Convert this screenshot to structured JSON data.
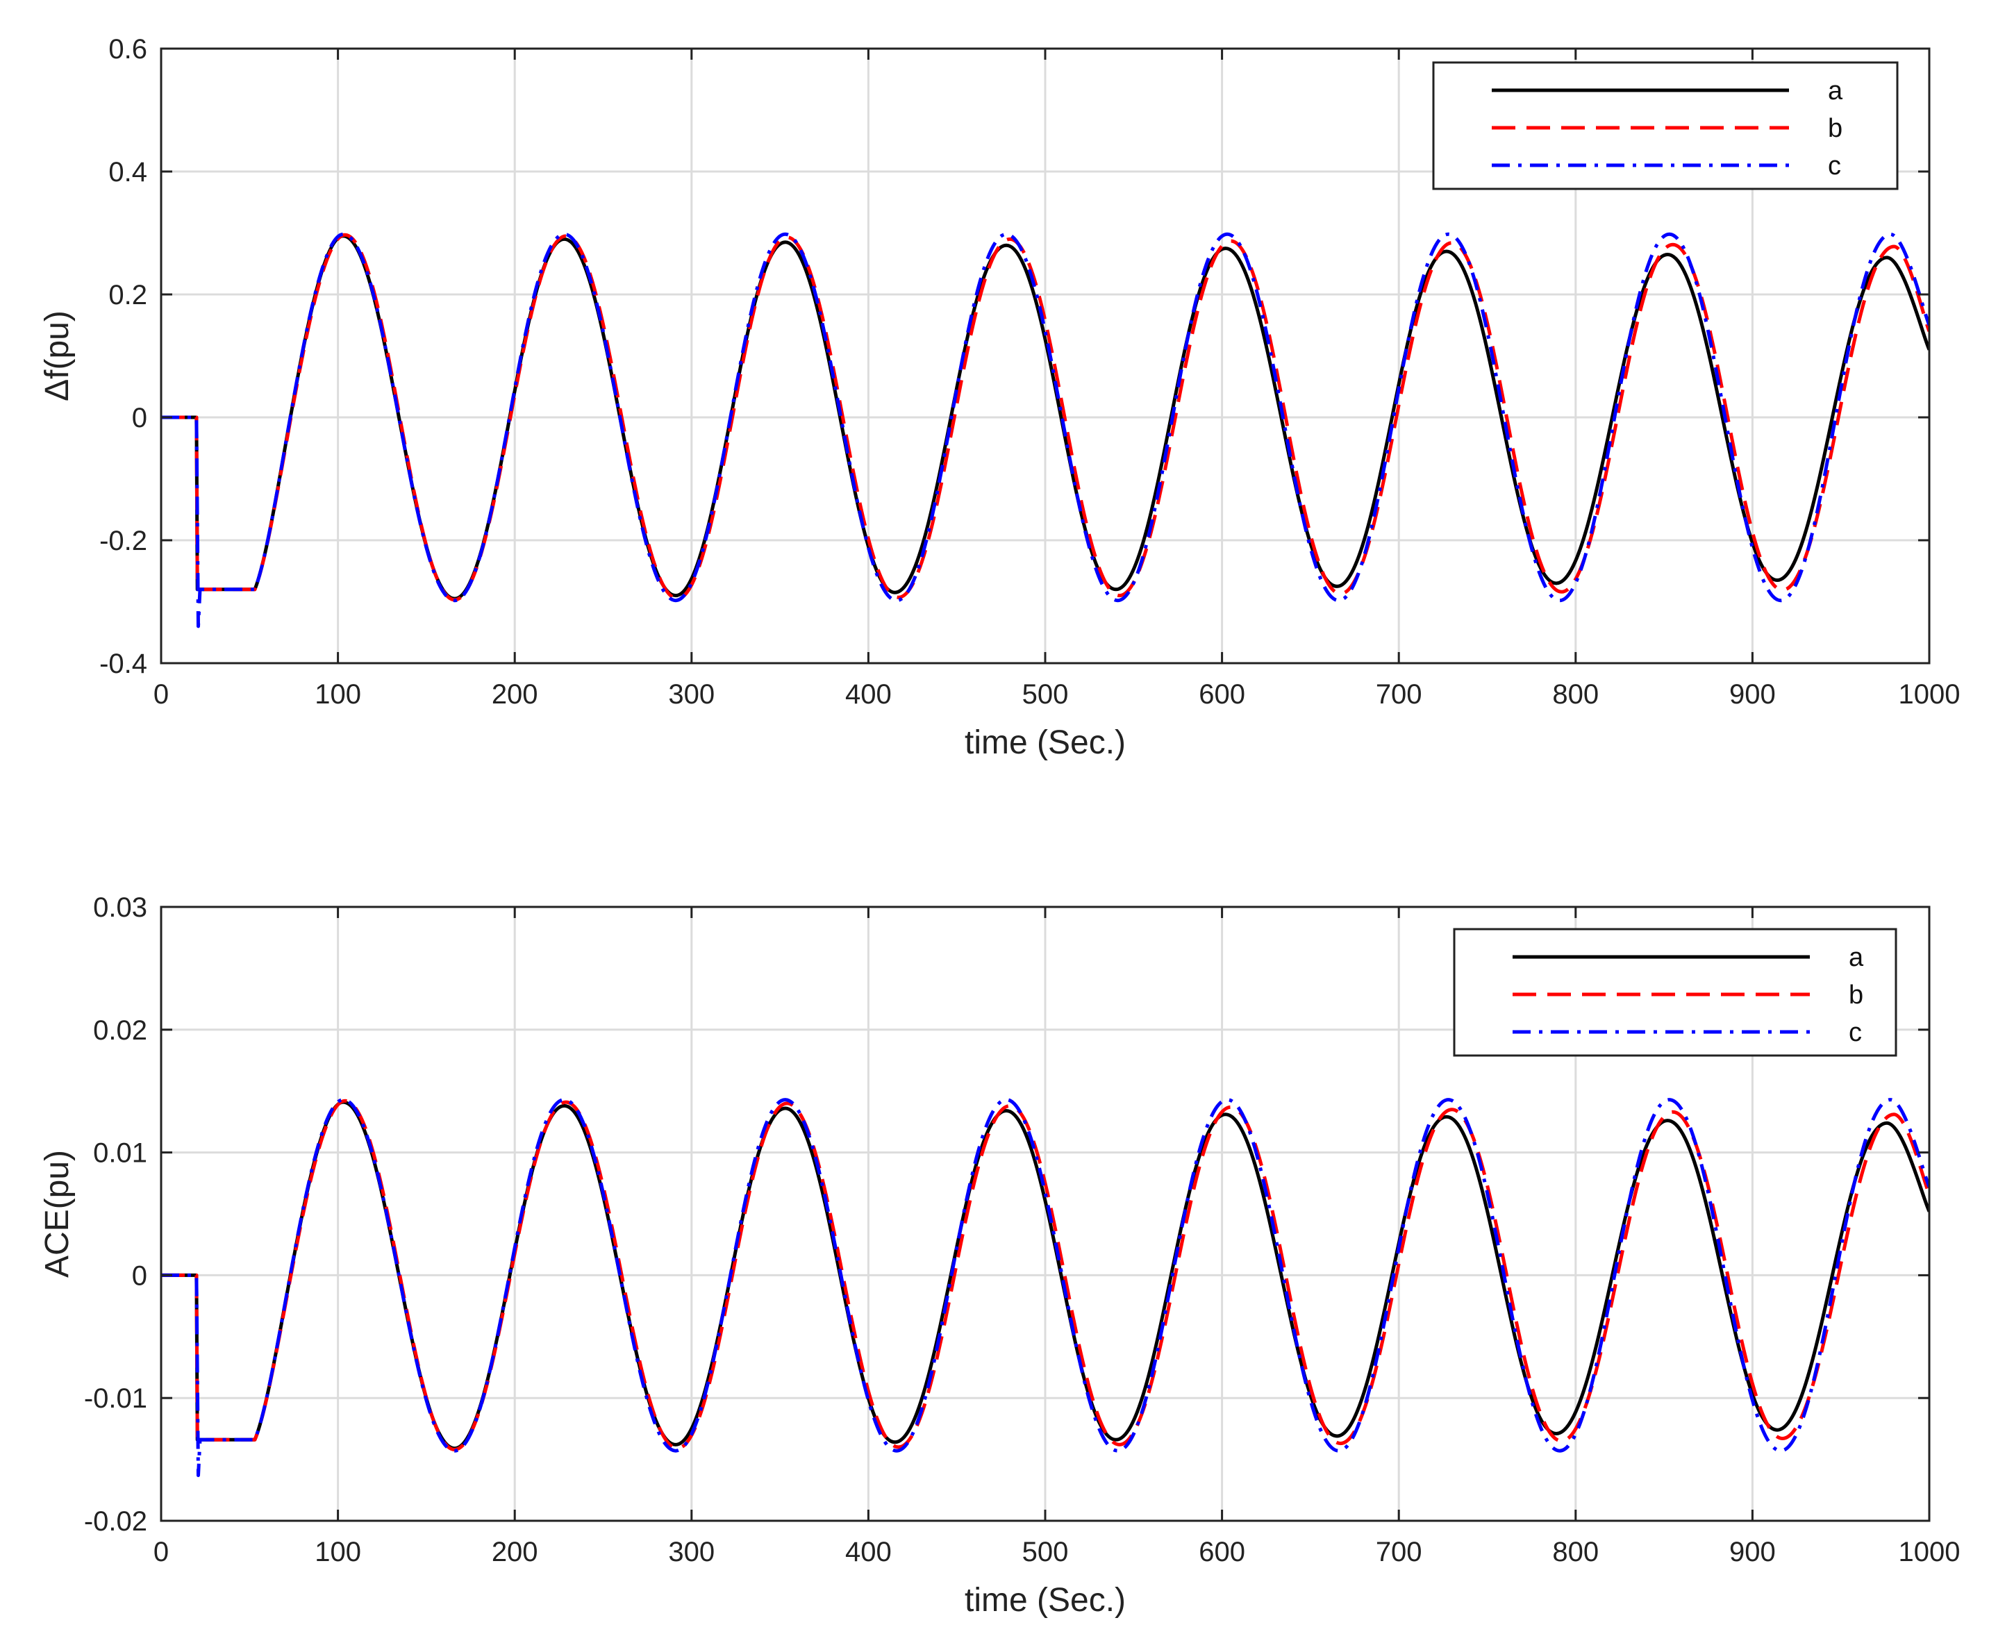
{
  "chart_data": [
    {
      "type": "line",
      "id": "top",
      "xlabel": "time (Sec.)",
      "ylabel": "Δf(pu)",
      "xlim": [
        0,
        1000
      ],
      "ylim": [
        -0.4,
        0.6
      ],
      "xticks": [
        0,
        100,
        200,
        300,
        400,
        500,
        600,
        700,
        800,
        900,
        1000
      ],
      "xtick_labels": [
        "0",
        "100",
        "200",
        "300",
        "400",
        "500",
        "600",
        "700",
        "800",
        "900",
        "1000"
      ],
      "yticks": [
        -0.4,
        -0.2,
        0,
        0.2,
        0.4,
        0.6
      ],
      "ytick_labels": [
        "-0.4",
        "-0.2",
        "0",
        "0.2",
        "0.4",
        "0.6"
      ],
      "grid": true,
      "legend_position": "top-right",
      "series": [
        {
          "name": "a",
          "color": "#000000",
          "style": "solid",
          "x": [
            0,
            20,
            20.5,
            22,
            53,
            103,
            166,
            228,
            291,
            353,
            415,
            478,
            540,
            602,
            665,
            727,
            789,
            852,
            914,
            976,
            1000
          ],
          "y": [
            0,
            0,
            -0.28,
            -0.28,
            -0.28,
            0.295,
            -0.295,
            0.29,
            -0.29,
            0.285,
            -0.285,
            0.28,
            -0.28,
            0.275,
            -0.275,
            0.27,
            -0.27,
            0.265,
            -0.265,
            0.26,
            0.11
          ]
        },
        {
          "name": "b",
          "color": "#ff0000",
          "style": "dashed",
          "x": [
            0,
            20,
            20.5,
            22,
            53,
            104,
            166,
            229,
            292,
            354,
            417,
            480,
            542,
            605,
            667,
            730,
            792,
            855,
            917,
            980,
            1000
          ],
          "y": [
            0,
            0,
            -0.28,
            -0.28,
            -0.28,
            0.297,
            -0.297,
            0.295,
            -0.295,
            0.293,
            -0.293,
            0.29,
            -0.29,
            0.287,
            -0.287,
            0.284,
            -0.284,
            0.281,
            -0.281,
            0.278,
            0.14
          ]
        },
        {
          "name": "c",
          "color": "#0000ff",
          "style": "dashdot",
          "x": [
            0,
            20,
            21,
            22,
            53,
            103,
            166,
            228,
            291,
            353,
            416,
            478,
            541,
            603,
            666,
            728,
            791,
            853,
            916,
            978,
            1000
          ],
          "y": [
            0,
            0,
            -0.34,
            -0.28,
            -0.28,
            0.298,
            -0.298,
            0.298,
            -0.298,
            0.298,
            -0.298,
            0.298,
            -0.298,
            0.298,
            -0.298,
            0.298,
            -0.298,
            0.298,
            -0.298,
            0.298,
            0.15
          ]
        }
      ]
    },
    {
      "type": "line",
      "id": "bottom",
      "xlabel": "time (Sec.)",
      "ylabel": "ACE(pu)",
      "xlim": [
        0,
        1000
      ],
      "ylim": [
        -0.02,
        0.03
      ],
      "xticks": [
        0,
        100,
        200,
        300,
        400,
        500,
        600,
        700,
        800,
        900,
        1000
      ],
      "xtick_labels": [
        "0",
        "100",
        "200",
        "300",
        "400",
        "500",
        "600",
        "700",
        "800",
        "900",
        "1000"
      ],
      "yticks": [
        -0.02,
        -0.01,
        0,
        0.01,
        0.02,
        0.03
      ],
      "ytick_labels": [
        "-0.02",
        "-0.01",
        "0",
        "0.01",
        "0.02",
        "0.03"
      ],
      "grid": true,
      "legend_position": "top-right",
      "series": [
        {
          "name": "a",
          "color": "#000000",
          "style": "solid",
          "x": [
            0,
            20,
            20.5,
            22,
            53,
            103,
            166,
            228,
            291,
            353,
            415,
            478,
            540,
            602,
            665,
            727,
            789,
            852,
            914,
            976,
            1000
          ],
          "y": [
            0,
            0,
            -0.0134,
            -0.0134,
            -0.0134,
            0.0141,
            -0.0141,
            0.0138,
            -0.0138,
            0.0136,
            -0.0136,
            0.0134,
            -0.0134,
            0.0131,
            -0.0131,
            0.0129,
            -0.0129,
            0.0126,
            -0.0126,
            0.0124,
            0.0052
          ]
        },
        {
          "name": "b",
          "color": "#ff0000",
          "style": "dashed",
          "x": [
            0,
            20,
            20.5,
            22,
            53,
            104,
            166,
            229,
            292,
            354,
            417,
            480,
            542,
            605,
            667,
            730,
            792,
            855,
            917,
            980,
            1000
          ],
          "y": [
            0,
            0,
            -0.0134,
            -0.0134,
            -0.0134,
            0.0142,
            -0.0142,
            0.0141,
            -0.0141,
            0.014,
            -0.014,
            0.0138,
            -0.0138,
            0.0137,
            -0.0137,
            0.0135,
            -0.0135,
            0.0133,
            -0.0133,
            0.0131,
            0.0066
          ]
        },
        {
          "name": "c",
          "color": "#0000ff",
          "style": "dashdot",
          "x": [
            0,
            20,
            21,
            22,
            53,
            103,
            166,
            228,
            291,
            353,
            416,
            478,
            541,
            603,
            666,
            728,
            791,
            853,
            916,
            978,
            1000
          ],
          "y": [
            0,
            0,
            -0.0163,
            -0.0134,
            -0.0134,
            0.0143,
            -0.0143,
            0.0143,
            -0.0143,
            0.0143,
            -0.0143,
            0.0143,
            -0.0143,
            0.0143,
            -0.0143,
            0.0143,
            -0.0143,
            0.0143,
            -0.0143,
            0.0143,
            0.0072
          ]
        }
      ]
    }
  ]
}
